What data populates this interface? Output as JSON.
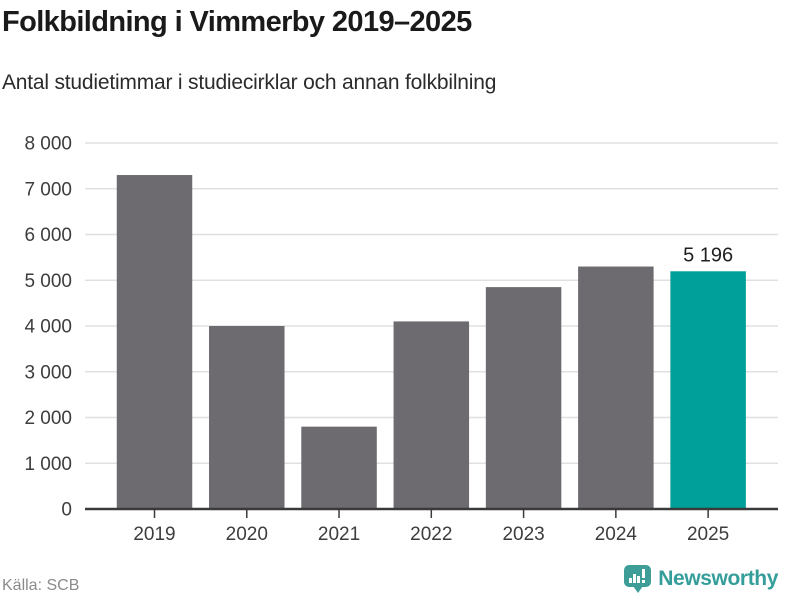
{
  "header": {
    "title": "Folkbildning i Vimmerby 2019–2025",
    "subtitle": "Antal studietimmar i studiecirklar och annan folkbilning"
  },
  "chart_data": {
    "type": "bar",
    "title": "Folkbildning i Vimmerby 2019–2025",
    "subtitle": "Antal studietimmar i studiecirklar och annan folkbilning",
    "categories": [
      "2019",
      "2020",
      "2021",
      "2022",
      "2023",
      "2024",
      "2025"
    ],
    "values": [
      7300,
      4000,
      1800,
      4100,
      4850,
      5300,
      5196
    ],
    "data_labels": [
      null,
      null,
      null,
      null,
      null,
      null,
      "5 196"
    ],
    "highlight_index": 6,
    "bar_color": "#6d6a70",
    "highlight_color": "#00a09a",
    "ylim": [
      0,
      8000
    ],
    "y_ticks": [
      0,
      1000,
      2000,
      3000,
      4000,
      5000,
      6000,
      7000,
      8000
    ],
    "y_tick_labels": [
      "0",
      "1 000",
      "2 000",
      "3 000",
      "4 000",
      "5 000",
      "6 000",
      "7 000",
      "8 000"
    ],
    "grid": true,
    "legend": "none",
    "gridline_color": "#e0e0e0",
    "axis_color": "#3a3a3a",
    "tick_label_color": "#3d3d3d",
    "data_label_color": "#1f1f1f",
    "source": "Källa: SCB"
  },
  "footer": {
    "source": "Källa: SCB",
    "brand": "Newsworthy"
  }
}
